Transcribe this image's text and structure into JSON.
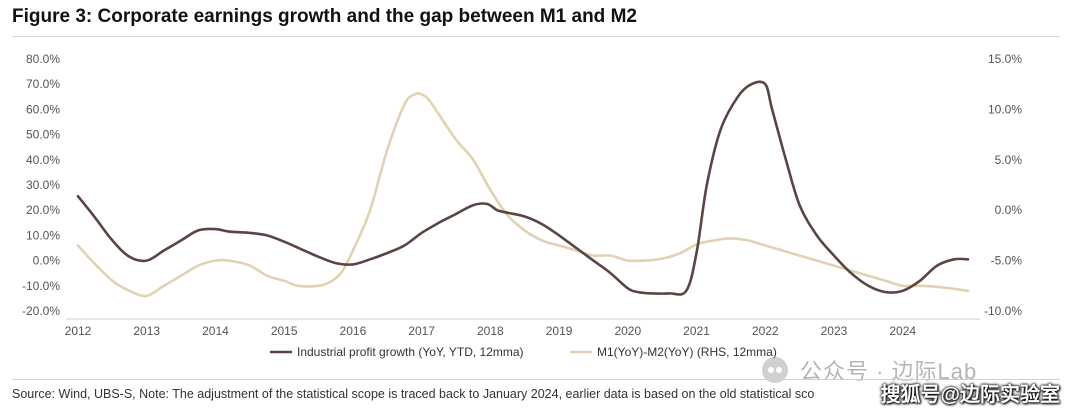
{
  "figure": {
    "title": "Figure 3: Corporate earnings growth and the gap between M1 and M2",
    "source": "Source: Wind, UBS-S, Note: The adjustment of the statistical scope is traced back to January 2024, earlier data is based on the old statistical sco"
  },
  "watermark": {
    "text": "公众号 · 边际Lab",
    "stamp": "搜狐号@边际实验室"
  },
  "colors": {
    "industrial_profit": "#5a4540",
    "m1_m2": "#e2d2b4",
    "axis_text": "#555555",
    "axis_line": "#cfcfcf"
  },
  "chart_data": {
    "type": "line",
    "title": "",
    "xlabel": "",
    "ylabel": "",
    "x_ticks": [
      "2012",
      "2013",
      "2014",
      "2015",
      "2016",
      "2017",
      "2018",
      "2019",
      "2020",
      "2021",
      "2022",
      "2023",
      "2024"
    ],
    "x_range": [
      2012,
      2024.95
    ],
    "y_left": {
      "range": [
        -20,
        80
      ],
      "ticks": [
        "80.0%",
        "70.0%",
        "60.0%",
        "50.0%",
        "40.0%",
        "30.0%",
        "20.0%",
        "10.0%",
        "0.0%",
        "-10.0%",
        "-20.0%"
      ],
      "values": [
        80,
        70,
        60,
        50,
        40,
        30,
        20,
        10,
        0,
        -10,
        -20
      ]
    },
    "y_right": {
      "range": [
        -10,
        15
      ],
      "ticks": [
        "15.0%",
        "10.0%",
        "5.0%",
        "0.0%",
        "-5.0%",
        "-10.0%"
      ],
      "values": [
        15,
        10,
        5,
        0,
        -5,
        -10
      ]
    },
    "legend": {
      "position": "bottom"
    },
    "series": [
      {
        "name": "Industrial profit growth (YoY, YTD, 12mma)",
        "axis": "left",
        "x": [
          2012.0,
          2012.25,
          2012.5,
          2012.75,
          2013.0,
          2013.25,
          2013.5,
          2013.75,
          2014.0,
          2014.2,
          2014.5,
          2014.75,
          2015.0,
          2015.25,
          2015.5,
          2015.75,
          2016.0,
          2016.25,
          2016.5,
          2016.75,
          2017.0,
          2017.25,
          2017.5,
          2017.75,
          2017.95,
          2018.1,
          2018.25,
          2018.5,
          2018.75,
          2019.0,
          2019.25,
          2019.5,
          2019.75,
          2020.0,
          2020.15,
          2020.35,
          2020.6,
          2020.85,
          2021.0,
          2021.15,
          2021.35,
          2021.6,
          2021.8,
          2022.0,
          2022.1,
          2022.3,
          2022.5,
          2022.75,
          2023.0,
          2023.25,
          2023.5,
          2023.75,
          2024.0,
          2024.25,
          2024.5,
          2024.75,
          2024.95
        ],
        "values": [
          25.5,
          17,
          8,
          1.5,
          0,
          4,
          8,
          12,
          12.5,
          11.5,
          11,
          10,
          7.5,
          4.5,
          1.5,
          -1,
          -1.5,
          0.5,
          3,
          6,
          11,
          15,
          18.5,
          22,
          22.5,
          20,
          19,
          17.5,
          14.5,
          10,
          5,
          0,
          -5,
          -11,
          -12.5,
          -13,
          -13,
          -12,
          3,
          30,
          52,
          65,
          70,
          70,
          60,
          40,
          22,
          10,
          2,
          -5,
          -10,
          -12.5,
          -12,
          -8,
          -2,
          0.5,
          0.5
        ]
      },
      {
        "name": "M1(YoY)-M2(YoY) (RHS, 12mma)",
        "axis": "right",
        "x": [
          2012.0,
          2012.2,
          2012.5,
          2012.75,
          2013.0,
          2013.25,
          2013.5,
          2013.75,
          2014.0,
          2014.2,
          2014.5,
          2014.75,
          2015.0,
          2015.2,
          2015.5,
          2015.7,
          2015.85,
          2016.0,
          2016.25,
          2016.5,
          2016.75,
          2016.9,
          2017.0,
          2017.1,
          2017.25,
          2017.5,
          2017.75,
          2018.0,
          2018.25,
          2018.5,
          2018.75,
          2019.0,
          2019.25,
          2019.5,
          2019.75,
          2020.0,
          2020.25,
          2020.5,
          2020.75,
          2021.0,
          2021.25,
          2021.5,
          2021.75,
          2022.0,
          2022.25,
          2022.5,
          2022.75,
          2023.0,
          2023.25,
          2023.5,
          2023.75,
          2024.0,
          2024.25,
          2024.5,
          2024.75,
          2024.85,
          2024.95
        ],
        "values": [
          -3.5,
          -5,
          -7,
          -8,
          -8.5,
          -7.5,
          -6.5,
          -5.5,
          -5,
          -5,
          -5.5,
          -6.5,
          -7,
          -7.5,
          -7.5,
          -7,
          -6,
          -4,
          0,
          6,
          10.5,
          11.5,
          11.5,
          11,
          9.5,
          7,
          5,
          2,
          -0.5,
          -2,
          -3,
          -3.5,
          -4,
          -4.5,
          -4.5,
          -5,
          -5,
          -4.8,
          -4.3,
          -3.4,
          -3,
          -2.8,
          -3,
          -3.5,
          -4,
          -4.5,
          -5,
          -5.5,
          -6,
          -6.5,
          -7,
          -7.5,
          -7.5,
          -7.6,
          -7.8,
          -7.9,
          -8
        ]
      }
    ]
  }
}
